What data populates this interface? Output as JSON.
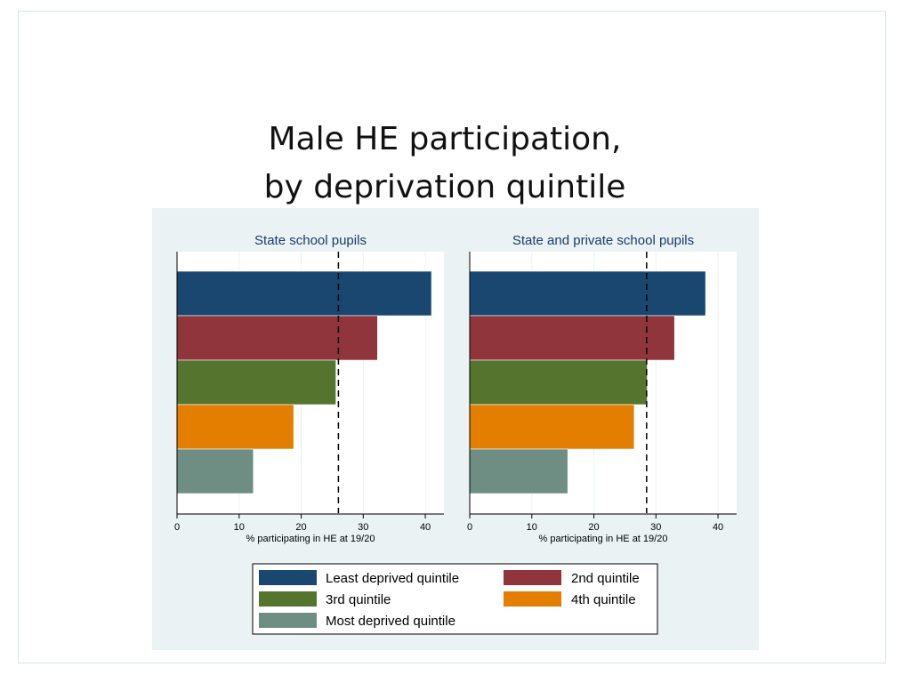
{
  "slide": {
    "title_line1": "Male HE participation,",
    "title_line2": "by deprivation quintile"
  },
  "chart_data": [
    {
      "type": "bar",
      "orientation": "horizontal",
      "title": "State school pupils",
      "xlabel": "% participating in HE at 19/20",
      "xlim": [
        0,
        43
      ],
      "xticks": [
        0,
        10,
        20,
        30,
        40
      ],
      "reference_line": 26,
      "series": [
        {
          "name": "Least deprived quintile",
          "value": 41,
          "color": "#1a476f"
        },
        {
          "name": "2nd quintile",
          "value": 32.3,
          "color": "#90353b"
        },
        {
          "name": "3rd quintile",
          "value": 25.6,
          "color": "#55752f"
        },
        {
          "name": "4th quintile",
          "value": 18.8,
          "color": "#e37e00"
        },
        {
          "name": "Most deprived quintile",
          "value": 12.3,
          "color": "#6e8e84"
        }
      ]
    },
    {
      "type": "bar",
      "orientation": "horizontal",
      "title": "State and private school pupils",
      "xlabel": "% participating in HE at 19/20",
      "xlim": [
        0,
        43
      ],
      "xticks": [
        0,
        10,
        20,
        30,
        40
      ],
      "reference_line": 28.5,
      "series": [
        {
          "name": "Least deprived quintile",
          "value": 38,
          "color": "#1a476f"
        },
        {
          "name": "2nd quintile",
          "value": 33,
          "color": "#90353b"
        },
        {
          "name": "3rd quintile",
          "value": 28.6,
          "color": "#55752f"
        },
        {
          "name": "4th quintile",
          "value": 26.5,
          "color": "#e37e00"
        },
        {
          "name": "Most deprived quintile",
          "value": 15.8,
          "color": "#6e8e84"
        }
      ]
    }
  ],
  "legend": {
    "placement": "bottom-center",
    "items": [
      {
        "label": "Least deprived quintile",
        "color": "#1a476f"
      },
      {
        "label": "2nd quintile",
        "color": "#90353b"
      },
      {
        "label": "3rd quintile",
        "color": "#55752f"
      },
      {
        "label": "4th quintile",
        "color": "#e37e00"
      },
      {
        "label": "Most deprived quintile",
        "color": "#6e8e84"
      }
    ]
  }
}
